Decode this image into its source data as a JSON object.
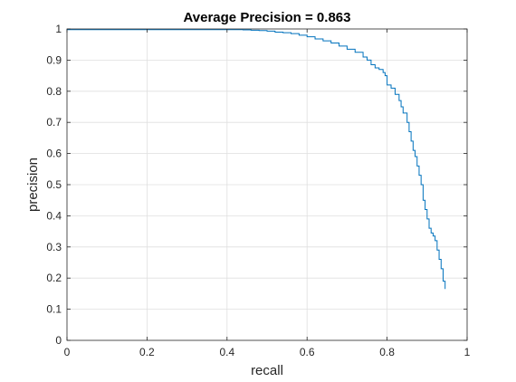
{
  "chart_data": {
    "type": "line",
    "title": "Average Precision = 0.863",
    "xlabel": "recall",
    "ylabel": "precision",
    "xlim": [
      0,
      1
    ],
    "ylim": [
      0,
      1
    ],
    "xticks": [
      0,
      0.2,
      0.4,
      0.6,
      0.8,
      1
    ],
    "xtick_labels": [
      "0",
      "0.2",
      "0.4",
      "0.6",
      "0.8",
      "1"
    ],
    "yticks": [
      0,
      0.1,
      0.2,
      0.3,
      0.4,
      0.5,
      0.6,
      0.7,
      0.8,
      0.9,
      1
    ],
    "ytick_labels": [
      "0",
      "0.1",
      "0.2",
      "0.3",
      "0.4",
      "0.5",
      "0.6",
      "0.7",
      "0.8",
      "0.9",
      "1"
    ],
    "grid": true,
    "box": true,
    "line_color": "#0072BD",
    "series": [
      {
        "x": [
          0.0,
          0.05,
          0.1,
          0.2,
          0.3,
          0.4,
          0.44,
          0.46,
          0.48,
          0.5,
          0.52,
          0.54,
          0.56,
          0.58,
          0.6,
          0.62,
          0.64,
          0.66,
          0.68,
          0.7,
          0.72,
          0.74,
          0.75,
          0.76,
          0.77,
          0.78,
          0.79,
          0.795,
          0.8,
          0.81,
          0.82,
          0.83,
          0.835,
          0.84,
          0.85,
          0.855,
          0.86,
          0.865,
          0.87,
          0.875,
          0.88,
          0.885,
          0.89,
          0.895,
          0.9,
          0.905,
          0.91,
          0.915,
          0.92,
          0.925,
          0.93,
          0.935,
          0.94,
          0.945
        ],
        "y": [
          0.998,
          0.998,
          0.998,
          0.998,
          0.998,
          0.998,
          0.997,
          0.996,
          0.995,
          0.993,
          0.99,
          0.988,
          0.985,
          0.98,
          0.975,
          0.968,
          0.962,
          0.955,
          0.945,
          0.935,
          0.925,
          0.91,
          0.9,
          0.885,
          0.875,
          0.87,
          0.86,
          0.85,
          0.82,
          0.81,
          0.79,
          0.77,
          0.75,
          0.73,
          0.7,
          0.67,
          0.64,
          0.61,
          0.59,
          0.56,
          0.53,
          0.5,
          0.45,
          0.42,
          0.39,
          0.36,
          0.345,
          0.335,
          0.32,
          0.29,
          0.26,
          0.23,
          0.19,
          0.165
        ]
      }
    ]
  }
}
